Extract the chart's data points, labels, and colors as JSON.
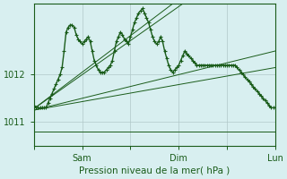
{
  "title": "",
  "xlabel": "Pression niveau de la mer( hPa )",
  "ylabel": "",
  "bg_color": "#d8eff0",
  "grid_color": "#b0c8c8",
  "line_color": "#1a5c1a",
  "text_color": "#1a5c1a",
  "ylim": [
    1010.5,
    1013.5
  ],
  "yticks": [
    1011,
    1012
  ],
  "xtick_labels": [
    "",
    "Sam",
    "",
    "Dim",
    "",
    "Lun"
  ],
  "xtick_positions": [
    0,
    48,
    96,
    144,
    192,
    240
  ],
  "total_points": 241,
  "series": [
    [
      1011.3,
      1011.3,
      1011.2,
      1011.2,
      1011.2,
      1011.2,
      1011.2,
      1011.2,
      1011.3,
      1011.4,
      1011.5,
      1011.6,
      1011.7,
      1011.8,
      1011.9,
      1012.0,
      1012.1,
      1012.15,
      1012.2,
      1012.25,
      1012.3,
      1012.35,
      1012.4,
      1012.45,
      1012.5,
      1012.55,
      1012.6,
      1012.65,
      1012.7,
      1012.75,
      1012.8,
      1012.85,
      1012.9,
      1012.95,
      1013.0,
      1013.05,
      1013.1,
      1013.15,
      1013.2,
      1013.25,
      1013.3,
      1013.35,
      1013.4,
      1013.45,
      1013.5,
      1013.5,
      1013.5,
      1013.5,
      1013.5,
      1013.5,
      1013.5,
      1013.5,
      1013.5,
      1013.5,
      1013.5,
      1013.5,
      1013.5,
      1013.5,
      1013.5,
      1013.5,
      1013.5,
      1013.5,
      1013.5,
      1013.5,
      1013.5,
      1013.5,
      1013.5,
      1013.5,
      1013.5,
      1013.5,
      1013.5,
      1013.5,
      1013.5,
      1013.5,
      1013.5,
      1013.5,
      1013.5,
      1013.5,
      1013.5,
      1013.5,
      1013.5,
      1013.5,
      1013.5,
      1013.5,
      1013.5,
      1013.5,
      1013.5,
      1013.5,
      1013.5,
      1013.5,
      1013.5,
      1013.5,
      1013.5,
      1013.5,
      1013.5,
      1013.5,
      1013.5,
      1013.5,
      1013.5,
      1013.5,
      1013.5,
      1013.5,
      1013.5,
      1013.5,
      1013.5,
      1013.5,
      1013.5,
      1013.5,
      1013.5,
      1013.5,
      1013.5,
      1013.5,
      1013.5,
      1013.5,
      1013.5,
      1013.5,
      1013.5,
      1013.5,
      1013.5,
      1013.5,
      1013.5,
      1013.5,
      1013.5,
      1013.5,
      1013.5,
      1013.5,
      1013.5,
      1013.5,
      1013.5,
      1013.5,
      1013.5,
      1013.5,
      1013.5,
      1013.5,
      1013.5,
      1013.5,
      1013.5,
      1013.5,
      1013.5,
      1013.5,
      1013.5,
      1013.5,
      1013.5,
      1013.5,
      1013.5,
      1013.5,
      1013.5,
      1013.5,
      1013.5,
      1013.5,
      1013.5,
      1013.5,
      1013.5,
      1013.5,
      1013.5,
      1013.5,
      1013.5,
      1013.5,
      1013.5,
      1013.5,
      1013.5,
      1013.5,
      1013.5,
      1013.5,
      1013.5,
      1013.5,
      1013.5,
      1013.5,
      1013.5,
      1013.5,
      1013.5,
      1013.5,
      1013.5,
      1013.5,
      1013.5,
      1013.5,
      1013.5,
      1013.5,
      1013.5,
      1013.5,
      1013.5,
      1013.5,
      1013.5,
      1013.5,
      1013.5,
      1013.5,
      1013.5,
      1013.5,
      1013.5,
      1013.5,
      1013.5,
      1013.5,
      1013.5,
      1013.5,
      1013.5,
      1013.5,
      1013.5,
      1013.5,
      1013.5,
      1013.5,
      1013.5,
      1013.5,
      1013.5,
      1013.5,
      1013.5,
      1013.5,
      1013.5,
      1013.5,
      1013.5,
      1013.5,
      1013.5,
      1013.5,
      1013.5,
      1013.5,
      1013.5,
      1013.5,
      1013.5,
      1013.5,
      1013.5,
      1013.5,
      1013.5,
      1013.5,
      1013.5,
      1013.5,
      1013.5,
      1013.5,
      1013.5,
      1013.5,
      1013.5,
      1013.5,
      1013.5,
      1013.5,
      1013.5,
      1013.5,
      1013.5,
      1013.5,
      1013.5,
      1013.5,
      1013.5,
      1013.5,
      1013.5,
      1013.5,
      1013.5,
      1013.5,
      1013.5,
      1013.5
    ],
    [
      1011.3,
      1011.3,
      1011.2,
      1011.15,
      1011.1,
      1011.0,
      1010.9,
      1010.85,
      1010.8,
      1010.8,
      1010.8,
      1010.8,
      1010.8,
      1010.8,
      1010.8,
      1010.8,
      1010.8,
      1010.8,
      1010.8,
      1010.8,
      1010.8,
      1010.8,
      1010.8,
      1010.8,
      1010.8,
      1010.8,
      1010.8,
      1010.8,
      1010.8,
      1010.8,
      1010.8,
      1010.8,
      1010.8,
      1010.8,
      1010.8,
      1010.8,
      1010.8,
      1010.8,
      1010.8,
      1010.8,
      1010.8,
      1010.8,
      1010.8,
      1010.8,
      1010.8,
      1010.8,
      1010.8,
      1010.8,
      1010.8,
      1010.8,
      1010.8,
      1010.8,
      1010.8,
      1010.8,
      1010.8,
      1010.8,
      1010.8,
      1010.8,
      1010.8,
      1010.8,
      1010.8,
      1010.8,
      1010.8,
      1010.8,
      1010.8,
      1010.8,
      1010.8,
      1010.8,
      1010.8,
      1010.8,
      1010.8,
      1010.8,
      1010.8,
      1010.8,
      1010.8,
      1010.8,
      1010.8,
      1010.8,
      1010.8,
      1010.8,
      1010.8,
      1010.8,
      1010.8,
      1010.8,
      1010.8,
      1010.8,
      1010.8,
      1010.8,
      1010.8,
      1010.8,
      1010.8,
      1010.8,
      1010.8,
      1010.8,
      1010.8,
      1010.8,
      1010.8,
      1010.8,
      1010.8,
      1010.8,
      1010.8,
      1010.8,
      1010.8,
      1010.8,
      1010.8,
      1010.8,
      1010.8,
      1010.8,
      1010.8,
      1010.8,
      1010.8,
      1010.8,
      1010.8,
      1010.8,
      1010.8,
      1010.8,
      1010.8,
      1010.8,
      1010.8,
      1010.8,
      1010.8,
      1010.8,
      1010.8,
      1010.8,
      1010.8,
      1010.8,
      1010.8,
      1010.8,
      1010.8,
      1010.8,
      1010.8,
      1010.8,
      1010.8,
      1010.8,
      1010.8,
      1010.8,
      1010.8,
      1010.8,
      1010.8,
      1010.8,
      1010.8,
      1010.8,
      1010.8,
      1010.8,
      1010.8,
      1010.8,
      1010.8,
      1010.8,
      1010.8,
      1010.8,
      1010.8,
      1010.8,
      1010.8,
      1010.8,
      1010.8,
      1010.8,
      1010.8,
      1010.8,
      1010.8,
      1010.8,
      1010.8,
      1010.8,
      1010.8,
      1010.8,
      1010.8,
      1010.8,
      1010.8,
      1010.8,
      1010.8,
      1010.8,
      1010.8,
      1010.8,
      1010.8,
      1010.8,
      1010.8,
      1010.8,
      1010.8,
      1010.8,
      1010.8,
      1010.8,
      1010.8,
      1010.8,
      1010.8,
      1010.8,
      1010.8,
      1010.8,
      1010.8,
      1010.8,
      1010.8,
      1010.8,
      1010.8,
      1010.8,
      1010.8,
      1010.8,
      1010.8,
      1010.8,
      1010.8,
      1010.8,
      1010.8,
      1010.8,
      1010.8,
      1010.8,
      1010.8,
      1010.8,
      1010.8,
      1010.8,
      1010.8,
      1010.8,
      1010.8,
      1010.8,
      1010.8,
      1010.8,
      1010.8,
      1010.8,
      1010.8,
      1010.8,
      1010.8,
      1010.8,
      1010.8,
      1010.8,
      1010.8,
      1010.8,
      1010.8,
      1010.8,
      1010.8,
      1010.8,
      1010.8,
      1010.8,
      1010.8,
      1010.8,
      1010.8,
      1010.8,
      1010.8,
      1010.8,
      1010.8,
      1010.8,
      1010.8,
      1010.8,
      1010.8,
      1010.8,
      1010.8,
      1010.8,
      1010.8,
      1010.8,
      1010.8,
      1010.8
    ]
  ],
  "main_series_x": [
    0,
    2,
    4,
    6,
    8,
    10,
    12,
    14,
    16,
    18,
    20,
    22,
    24,
    26,
    28,
    30,
    32,
    34,
    36,
    38,
    40,
    42,
    44,
    46,
    48,
    50,
    52,
    54,
    56,
    58,
    60,
    62,
    64,
    66,
    68,
    70,
    72,
    74,
    76,
    78,
    80,
    82,
    84,
    86,
    88,
    90,
    92,
    94,
    96,
    98,
    100,
    102,
    104,
    106,
    108,
    110,
    112,
    114,
    116,
    118,
    120,
    122,
    124,
    126,
    128,
    130,
    132,
    134,
    136,
    138,
    140,
    142,
    144,
    146,
    148,
    150,
    152,
    154,
    156,
    158,
    160,
    162,
    164,
    166,
    168,
    170,
    172,
    174,
    176,
    178,
    180,
    182,
    184,
    186,
    188,
    190,
    192,
    194,
    196,
    198,
    200,
    202,
    204,
    206,
    208,
    210,
    212,
    214,
    216,
    218,
    220,
    222,
    224,
    226,
    228,
    230,
    232,
    234,
    236,
    238,
    240
  ],
  "main_series_y": [
    1011.35,
    1011.3,
    1011.3,
    1011.3,
    1011.3,
    1011.3,
    1011.3,
    1011.4,
    1011.5,
    1011.6,
    1011.7,
    1011.8,
    1011.9,
    1012.0,
    1012.15,
    1012.5,
    1012.9,
    1013.0,
    1013.05,
    1013.05,
    1013.0,
    1012.85,
    1012.75,
    1012.7,
    1012.65,
    1012.7,
    1012.75,
    1012.8,
    1012.7,
    1012.5,
    1012.3,
    1012.2,
    1012.1,
    1012.05,
    1012.05,
    1012.05,
    1012.1,
    1012.15,
    1012.2,
    1012.3,
    1012.5,
    1012.7,
    1012.8,
    1012.9,
    1012.85,
    1012.75,
    1012.7,
    1012.65,
    1012.8,
    1012.95,
    1013.1,
    1013.2,
    1013.3,
    1013.35,
    1013.4,
    1013.3,
    1013.2,
    1013.1,
    1012.95,
    1012.8,
    1012.7,
    1012.65,
    1012.7,
    1012.8,
    1012.7,
    1012.5,
    1012.35,
    1012.2,
    1012.1,
    1012.05,
    1012.1,
    1012.15,
    1012.2,
    1012.3,
    1012.4,
    1012.5,
    1012.45,
    1012.4,
    1012.35,
    1012.3,
    1012.25,
    1012.2,
    1012.2,
    1012.2,
    1012.2,
    1012.2,
    1012.2,
    1012.2,
    1012.2,
    1012.2,
    1012.2,
    1012.2,
    1012.2,
    1012.2,
    1012.2,
    1012.2,
    1012.2,
    1012.2,
    1012.2,
    1012.2,
    1012.2,
    1012.15,
    1012.1,
    1012.05,
    1012.0,
    1011.95,
    1011.9,
    1011.85,
    1011.8,
    1011.75,
    1011.7,
    1011.65,
    1011.6,
    1011.55,
    1011.5,
    1011.45,
    1011.4,
    1011.35,
    1011.3,
    1011.3,
    1011.3
  ]
}
